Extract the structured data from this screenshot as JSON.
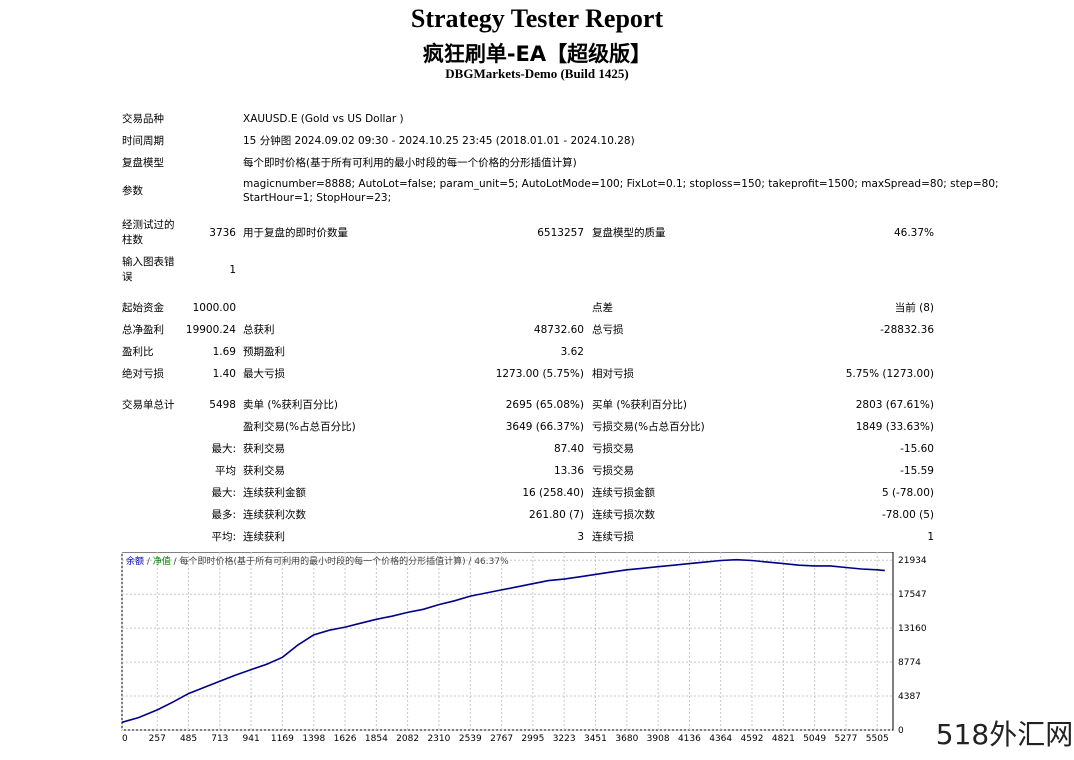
{
  "header": {
    "title": "Strategy Tester Report",
    "subtitle": "疯狂刷单-EA【超级版】",
    "server": "DBGMarkets-Demo (Build 1425)"
  },
  "settings": {
    "symbol_label": "交易品种",
    "symbol_value": "XAUUSD.E (Gold vs US Dollar )",
    "period_label": "时间周期",
    "period_value": "15 分钟图 2024.09.02 09:30 - 2024.10.25 23:45 (2018.01.01 - 2024.10.28)",
    "model_label": "复盘模型",
    "model_value": "每个即时价格(基于所有可利用的最小时段的每一个价格的分形插值计算)",
    "params_label": "参数",
    "params_line1": "magicnumber=8888; AutoLot=false; param_unit=5; AutoLotMode=100; FixLot=0.1; stoploss=150; takeprofit=1500; maxSpread=80; step=80;",
    "params_line2": "StartHour=1; StopHour=23;",
    "bars_label_1": "经测试过的",
    "bars_label_2": "柱数",
    "bars_value": "3736",
    "ticks_label": "用于复盘的即时价数量",
    "ticks_value": "6513257",
    "quality_label": "复盘模型的质量",
    "quality_value": "46.37%",
    "errors_label_1": "输入图表错",
    "errors_label_2": "误",
    "errors_value": "1"
  },
  "results": {
    "initial_deposit_label": "起始资金",
    "initial_deposit": "1000.00",
    "spread_label": "点差",
    "spread": "当前 (8)",
    "net_profit_label": "总净盈利",
    "net_profit": "19900.24",
    "gross_profit_label": "总获利",
    "gross_profit": "48732.60",
    "gross_loss_label": "总亏损",
    "gross_loss": "-28832.36",
    "profit_factor_label": "盈利比",
    "profit_factor": "1.69",
    "expected_payoff_label": "预期盈利",
    "expected_payoff": "3.62",
    "abs_drawdown_label": "绝对亏损",
    "abs_drawdown": "1.40",
    "max_drawdown_label": "最大亏损",
    "max_drawdown": "1273.00 (5.75%)",
    "rel_drawdown_label": "相对亏损",
    "rel_drawdown": "5.75% (1273.00)",
    "total_trades_label": "交易单总计",
    "total_trades": "5498",
    "short_label": "卖单 (%获利百分比)",
    "short": "2695 (65.08%)",
    "long_label": "买单 (%获利百分比)",
    "long": "2803 (67.61%)",
    "profit_trades_label": "盈利交易(%占总百分比)",
    "profit_trades": "3649 (66.37%)",
    "loss_trades_label": "亏损交易(%占总百分比)",
    "loss_trades": "1849 (33.63%)",
    "largest_label": "最大:",
    "largest_profit_label": "获利交易",
    "largest_profit": "87.40",
    "largest_loss_label": "亏损交易",
    "largest_loss": "-15.60",
    "average_label": "平均",
    "avg_profit_label": "获利交易",
    "avg_profit": "13.36",
    "avg_loss_label": "亏损交易",
    "avg_loss": "-15.59",
    "max_cons_label": "最大:",
    "max_cons_wins_label": "连续获利金额",
    "max_cons_wins": "16 (258.40)",
    "max_cons_losses_label": "连续亏损金额",
    "max_cons_losses": "5 (-78.00)",
    "max_cons2_label": "最多:",
    "max_cons_profit_label": "连续获利次数",
    "max_cons_profit": "261.80 (7)",
    "max_cons_loss_label": "连续亏损次数",
    "max_cons_loss": "-78.00 (5)",
    "avg_cons_label": "平均:",
    "avg_cons_wins_label": "连续获利",
    "avg_cons_wins": "3",
    "avg_cons_losses_label": "连续亏损",
    "avg_cons_losses": "1"
  },
  "chart_data": {
    "type": "line",
    "legend_balance": "余额",
    "legend_sep": " / ",
    "legend_equity": "净值",
    "legend_rest": " / 每个即时价格(基于所有可利用的最小时段的每一个价格的分形插值计算) / 46.37%",
    "x_ticks": [
      "0",
      "257",
      "485",
      "713",
      "941",
      "1169",
      "1398",
      "1626",
      "1854",
      "2082",
      "2310",
      "2539",
      "2767",
      "2995",
      "3223",
      "3451",
      "3680",
      "3908",
      "4136",
      "4364",
      "4592",
      "4821",
      "5049",
      "5277",
      "5505"
    ],
    "y_ticks": [
      "0",
      "4387",
      "8774",
      "13160",
      "17547",
      "21934"
    ],
    "xlim": [
      0,
      5620
    ],
    "ylim": [
      0,
      23000
    ],
    "series": [
      {
        "x": [
          0,
          120,
          257,
          371,
          485,
          599,
          713,
          827,
          941,
          1055,
          1169,
          1283,
          1398,
          1512,
          1626,
          1740,
          1854,
          1968,
          2082,
          2196,
          2310,
          2424,
          2539,
          2653,
          2767,
          2881,
          2995,
          3109,
          3223,
          3337,
          3451,
          3565,
          3680,
          3794,
          3908,
          4022,
          4136,
          4250,
          4364,
          4478,
          4592,
          4706,
          4821,
          4935,
          5049,
          5163,
          5277,
          5391,
          5505,
          5560
        ],
        "y": [
          1000,
          1600,
          2600,
          3600,
          4700,
          5500,
          6300,
          7100,
          7800,
          8500,
          9400,
          11000,
          12300,
          12900,
          13300,
          13800,
          14300,
          14700,
          15200,
          15600,
          16200,
          16700,
          17300,
          17700,
          18100,
          18500,
          18900,
          19300,
          19500,
          19800,
          20100,
          20400,
          20700,
          20900,
          21100,
          21300,
          21500,
          21700,
          21900,
          22000,
          21900,
          21700,
          21500,
          21300,
          21200,
          21200,
          21000,
          20800,
          20700,
          20600
        ]
      }
    ],
    "colors": {
      "line": "#00008b",
      "grid": "#c8c8c8",
      "legend_balance": "#0000c8",
      "legend_equity": "#008000"
    }
  },
  "watermark": "518外汇网"
}
